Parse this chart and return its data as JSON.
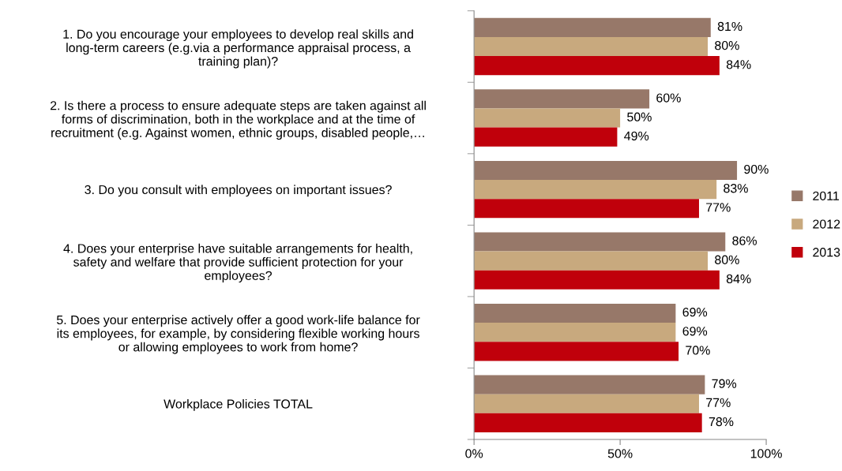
{
  "chart_data": {
    "type": "bar",
    "orientation": "horizontal",
    "categories": [
      "1. Do you encourage your employees to develop real skills and\nlong-term careers (e.g.via a performance appraisal process, a\ntraining plan)?",
      "2. Is there a process to ensure adequate steps are taken against all\nforms of discrimination, both in the workplace and at the time of\nrecruitment (e.g. Against women, ethnic groups, disabled people,…",
      "3. Do you consult with employees on important issues?",
      "4. Does your enterprise have suitable arrangements for health,\nsafety and welfare that provide sufficient protection for your\nemployees?",
      "5. Does your enterprise actively offer a good work-life balance for\nits employees, for example, by considering flexible working hours\nor allowing employees to work from home?",
      "Workplace Policies TOTAL"
    ],
    "series": [
      {
        "name": "2011",
        "color": "#977869",
        "values": [
          81,
          60,
          90,
          86,
          69,
          79
        ],
        "value_labels": [
          "81%",
          "60%",
          "90%",
          "86%",
          "69%",
          "79%"
        ]
      },
      {
        "name": "2012",
        "color": "#c8a97e",
        "values": [
          80,
          50,
          83,
          80,
          69,
          77
        ],
        "value_labels": [
          "80%",
          "50%",
          "83%",
          "80%",
          "69%",
          "77%"
        ]
      },
      {
        "name": "2013",
        "color": "#c0000b",
        "values": [
          84,
          49,
          77,
          84,
          70,
          78
        ],
        "value_labels": [
          "84%",
          "49%",
          "77%",
          "84%",
          "70%",
          "78%"
        ]
      }
    ],
    "xlim": [
      0,
      100
    ],
    "xticks": [
      {
        "value": 0,
        "label": "0%"
      },
      {
        "value": 50,
        "label": "50%"
      },
      {
        "value": 100,
        "label": "100%"
      }
    ],
    "grid": false,
    "legend": "right"
  }
}
